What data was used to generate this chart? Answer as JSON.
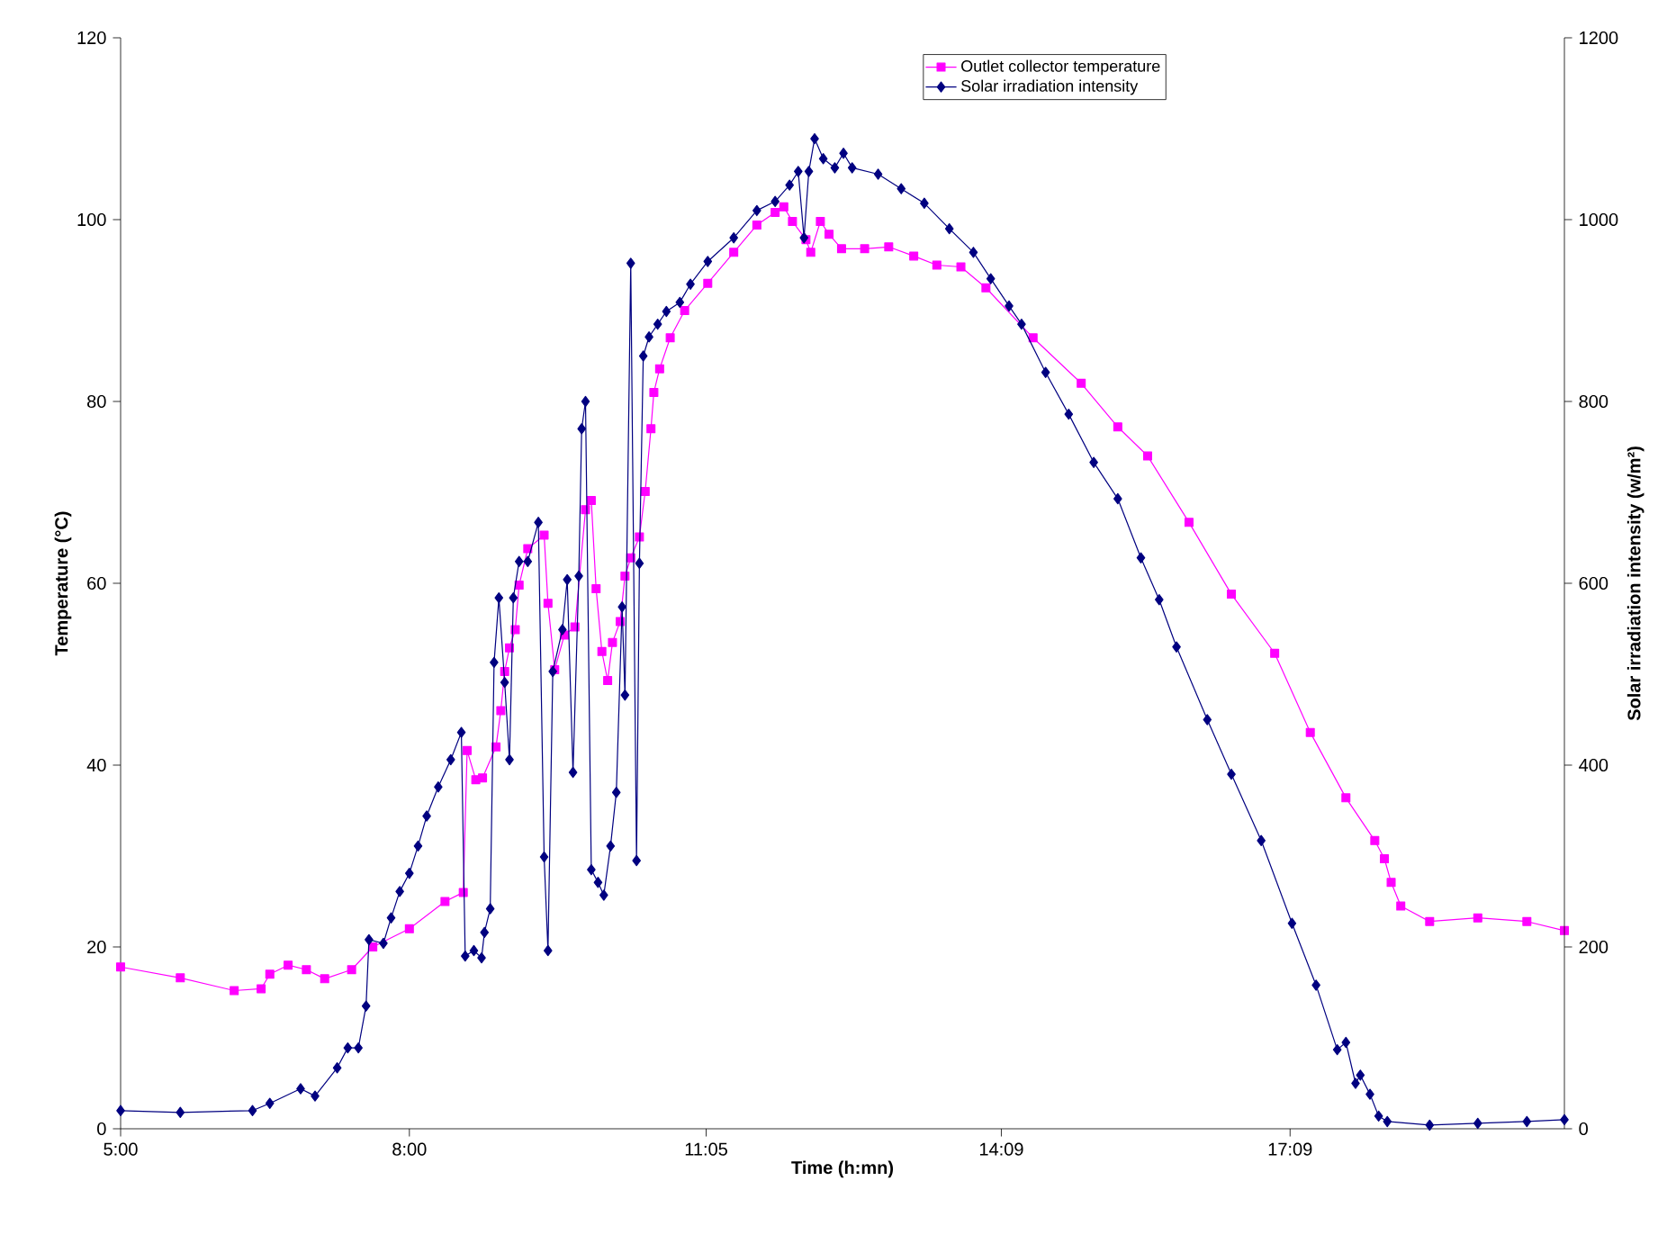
{
  "chart_data": {
    "type": "line",
    "xlabel": "Time (h:mn)",
    "ylabel": "Temperature (°C)",
    "y2label": "Solar irradiation intensity (w/m²)",
    "xlim": [
      5,
      20
    ],
    "xticks": [
      {
        "value": 5,
        "label": "5:00"
      },
      {
        "value": 8,
        "label": "8:00"
      },
      {
        "value": 11.0833,
        "label": "11:05"
      },
      {
        "value": 14.15,
        "label": "14:09"
      },
      {
        "value": 17.15,
        "label": "17:09"
      }
    ],
    "ylim": [
      0,
      120
    ],
    "yticks": [
      0,
      20,
      40,
      60,
      80,
      100,
      120
    ],
    "y2lim": [
      0,
      1200
    ],
    "y2ticks": [
      0,
      200,
      400,
      600,
      800,
      1000,
      1200
    ],
    "grid": false,
    "legend": "top",
    "series": [
      {
        "name": "Outlet collector temperature",
        "color": "#ff00ff",
        "marker": "square",
        "axis": "y",
        "x": [
          5.0,
          5.62,
          6.18,
          6.46,
          6.55,
          6.74,
          6.93,
          7.12,
          7.4,
          7.62,
          8.0,
          8.37,
          8.56,
          8.6,
          8.69,
          8.76,
          8.9,
          8.95,
          8.99,
          9.04,
          9.1,
          9.14,
          9.23,
          9.4,
          9.44,
          9.51,
          9.61,
          9.72,
          9.83,
          9.89,
          9.94,
          10.0,
          10.06,
          10.11,
          10.19,
          10.24,
          10.3,
          10.39,
          10.45,
          10.51,
          10.54,
          10.6,
          10.71,
          10.86,
          11.1,
          11.37,
          11.61,
          11.8,
          11.89,
          11.98,
          12.12,
          12.17,
          12.27,
          12.36,
          12.49,
          12.73,
          12.98,
          13.24,
          13.48,
          13.73,
          13.99,
          14.48,
          14.98,
          15.36,
          15.67,
          16.1,
          16.54,
          16.99,
          17.36,
          17.73,
          18.03,
          18.13,
          18.2,
          18.3,
          18.6,
          19.1,
          19.61,
          20.0
        ],
        "values": [
          17.8,
          16.6,
          15.2,
          15.4,
          17.0,
          18.0,
          17.5,
          16.5,
          17.5,
          20.0,
          22.0,
          25.0,
          26.0,
          41.6,
          38.4,
          38.6,
          42.0,
          46.0,
          50.3,
          52.9,
          54.9,
          59.8,
          63.8,
          65.3,
          57.8,
          50.5,
          54.3,
          55.2,
          68.1,
          69.1,
          59.4,
          52.5,
          49.3,
          53.5,
          55.8,
          60.8,
          62.8,
          65.1,
          70.1,
          77.0,
          81.0,
          83.6,
          87.0,
          90.0,
          93.0,
          96.4,
          99.4,
          100.8,
          101.4,
          99.8,
          97.8,
          96.4,
          99.8,
          98.4,
          96.8,
          96.8,
          97.0,
          96.0,
          95.0,
          94.8,
          92.5,
          87.0,
          82.0,
          77.2,
          74.0,
          66.7,
          58.8,
          52.3,
          43.6,
          36.4,
          31.7,
          29.7,
          27.1,
          24.5,
          22.8,
          23.2,
          22.8,
          21.8
        ]
      },
      {
        "name": "Solar irradiation intensity",
        "color": "#000080",
        "marker": "diamond",
        "axis": "y2",
        "x": [
          5.0,
          5.62,
          6.37,
          6.55,
          6.87,
          7.02,
          7.25,
          7.36,
          7.47,
          7.55,
          7.58,
          7.73,
          7.81,
          7.9,
          8.0,
          8.09,
          8.18,
          8.3,
          8.43,
          8.54,
          8.58,
          8.67,
          8.75,
          8.78,
          8.84,
          8.88,
          8.93,
          8.99,
          9.04,
          9.08,
          9.14,
          9.23,
          9.34,
          9.4,
          9.44,
          9.49,
          9.59,
          9.64,
          9.7,
          9.76,
          9.79,
          9.83,
          9.89,
          9.96,
          10.02,
          10.09,
          10.15,
          10.21,
          10.24,
          10.3,
          10.36,
          10.39,
          10.43,
          10.49,
          10.58,
          10.67,
          10.81,
          10.92,
          11.1,
          11.37,
          11.61,
          11.8,
          11.95,
          12.04,
          12.1,
          12.15,
          12.21,
          12.3,
          12.42,
          12.51,
          12.6,
          12.87,
          13.11,
          13.35,
          13.61,
          13.86,
          14.04,
          14.23,
          14.36,
          14.61,
          14.85,
          15.11,
          15.36,
          15.6,
          15.79,
          15.97,
          16.29,
          16.54,
          16.85,
          17.17,
          17.42,
          17.64,
          17.73,
          17.83,
          17.88,
          17.98,
          18.07,
          18.16,
          18.6,
          19.1,
          19.61,
          20.0
        ],
        "values": [
          20,
          18,
          20,
          28,
          44,
          36,
          67,
          89,
          89,
          135,
          208,
          204,
          232,
          261,
          281,
          311,
          344,
          376,
          406,
          436,
          190,
          196,
          188,
          216,
          242,
          513,
          584,
          491,
          406,
          584,
          624,
          624,
          667,
          299,
          196,
          503,
          549,
          604,
          392,
          608,
          770,
          800,
          285,
          271,
          257,
          311,
          370,
          574,
          477,
          952,
          295,
          622,
          850,
          871,
          885,
          899,
          909,
          929,
          954,
          980,
          1010,
          1020,
          1038,
          1053,
          980,
          1053,
          1089,
          1067,
          1057,
          1073,
          1057,
          1050,
          1034,
          1018,
          990,
          964,
          935,
          905,
          885,
          832,
          786,
          733,
          693,
          628,
          582,
          530,
          450,
          390,
          317,
          226,
          158,
          87,
          95,
          50,
          59,
          38,
          14,
          8,
          4,
          6,
          8,
          10
        ]
      }
    ]
  }
}
